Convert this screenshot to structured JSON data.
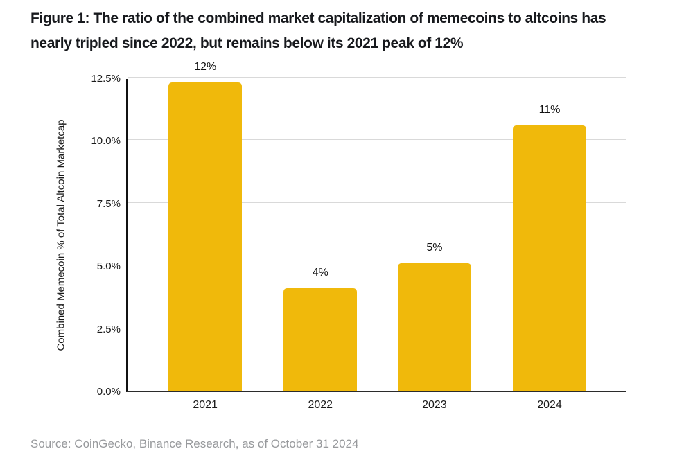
{
  "figure": {
    "title_lines": [
      "Figure 1: The ratio of the combined market capitalization of memecoins to altcoins has",
      "nearly tripled since 2022, but remains below its 2021 peak of 12%"
    ],
    "source": "Source: CoinGecko, Binance Research, as of October 31 2024"
  },
  "colors": {
    "bar": "#F0B90B",
    "grid": "#D9D9D9",
    "axis": "#111111",
    "title_text": "#17191D",
    "source_text": "#97999C"
  },
  "chart_data": {
    "type": "bar",
    "categories": [
      "2021",
      "2022",
      "2023",
      "2024"
    ],
    "values": [
      12.3,
      4.1,
      5.1,
      10.6
    ],
    "data_labels": [
      "12%",
      "4%",
      "5%",
      "11%"
    ],
    "title": "Figure 1: The ratio of the combined market capitalization of memecoins to altcoins has nearly tripled since 2022, but remains below its 2021 peak of 12%",
    "xlabel": "",
    "ylabel": "Combined Memecoin % of Total Altcoin Marketcap",
    "ylim": [
      0,
      12.5
    ],
    "yticks": [
      {
        "value": 0,
        "label": "0.0%"
      },
      {
        "value": 2.5,
        "label": "2.5%"
      },
      {
        "value": 5,
        "label": "5.0%"
      },
      {
        "value": 7.5,
        "label": "7.5%"
      },
      {
        "value": 10,
        "label": "10.0%"
      },
      {
        "value": 12.5,
        "label": "12.5%"
      }
    ],
    "grid": "horizontal",
    "legend": "none",
    "bar_color": "#F0B90B"
  }
}
